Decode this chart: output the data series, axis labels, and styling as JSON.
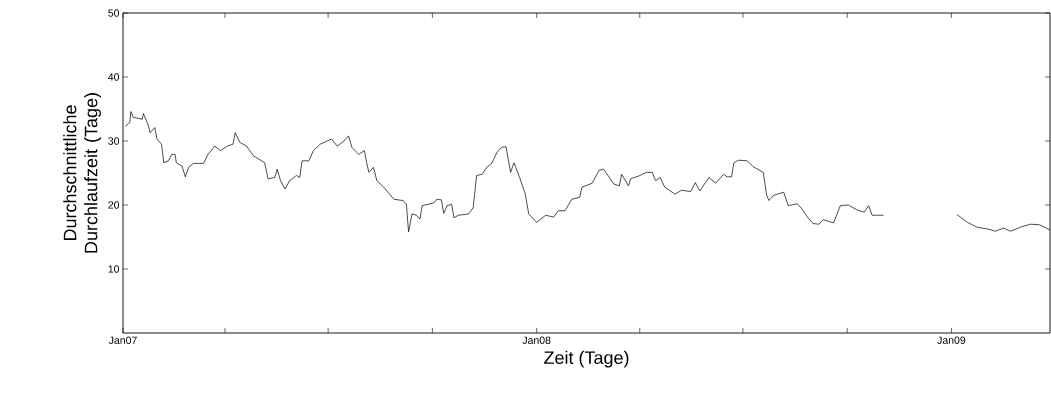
{
  "chart_data": {
    "type": "line",
    "xlabel": "Zeit (Tage)",
    "ylabel": "Durchschnittliche Durchlaufzeit (Tage)",
    "xlim": [
      "2007-01-01",
      "2009-03-29"
    ],
    "ylim": [
      0,
      50
    ],
    "xticks": [
      {
        "value": "2007-01-01",
        "label": "Jan07"
      },
      {
        "value": "2007-04-01",
        "label": null
      },
      {
        "value": "2007-07-01",
        "label": null
      },
      {
        "value": "2007-10-01",
        "label": null
      },
      {
        "value": "2008-01-01",
        "label": "Jan08"
      },
      {
        "value": "2008-04-01",
        "label": null
      },
      {
        "value": "2008-07-01",
        "label": null
      },
      {
        "value": "2008-10-01",
        "label": null
      },
      {
        "value": "2009-01-01",
        "label": "Jan09"
      }
    ],
    "yticks": [
      10,
      20,
      30,
      40,
      50
    ],
    "grid": false,
    "marker": "none",
    "line_style": "solid",
    "series": [
      {
        "color": "#000000",
        "x": [
          "2007-01-03",
          "2007-01-07",
          "2007-01-08",
          "2007-01-10",
          "2007-01-18",
          "2007-01-19",
          "2007-01-23",
          "2007-01-25",
          "2007-01-29",
          "2007-01-31",
          "2007-02-04",
          "2007-02-06",
          "2007-02-10",
          "2007-02-13",
          "2007-02-16",
          "2007-02-17",
          "2007-02-22",
          "2007-02-25",
          "2007-02-28",
          "2007-03-04",
          "2007-03-13",
          "2007-03-17",
          "2007-03-23",
          "2007-03-28",
          "2007-04-03",
          "2007-04-08",
          "2007-04-10",
          "2007-04-14",
          "2007-04-20",
          "2007-04-26",
          "2007-05-06",
          "2007-05-09",
          "2007-05-15",
          "2007-05-17",
          "2007-05-20",
          "2007-05-24",
          "2007-05-28",
          "2007-06-03",
          "2007-06-06",
          "2007-06-08",
          "2007-06-14",
          "2007-06-18",
          "2007-06-24",
          "2007-06-30",
          "2007-07-04",
          "2007-07-09",
          "2007-07-15",
          "2007-07-19",
          "2007-07-22",
          "2007-07-28",
          "2007-08-02",
          "2007-08-04",
          "2007-08-06",
          "2007-08-10",
          "2007-08-13",
          "2007-08-19",
          "2007-08-28",
          "2007-09-05",
          "2007-09-08",
          "2007-09-10",
          "2007-09-13",
          "2007-09-17",
          "2007-09-20",
          "2007-09-22",
          "2007-10-02",
          "2007-10-05",
          "2007-10-09",
          "2007-10-11",
          "2007-10-14",
          "2007-10-18",
          "2007-10-20",
          "2007-10-24",
          "2007-11-02",
          "2007-11-06",
          "2007-11-09",
          "2007-11-14",
          "2007-11-18",
          "2007-11-22",
          "2007-11-27",
          "2007-12-01",
          "2007-12-05",
          "2007-12-09",
          "2007-12-12",
          "2007-12-17",
          "2007-12-22",
          "2007-12-25",
          "2008-01-01",
          "2008-01-09",
          "2008-01-16",
          "2008-01-20",
          "2008-01-26",
          "2008-02-01",
          "2008-02-08",
          "2008-02-10",
          "2008-02-19",
          "2008-02-25",
          "2008-02-29",
          "2008-03-04",
          "2008-03-09",
          "2008-03-14",
          "2008-03-16",
          "2008-03-22",
          "2008-03-24",
          "2008-04-01",
          "2008-04-07",
          "2008-04-12",
          "2008-04-15",
          "2008-04-19",
          "2008-04-23",
          "2008-05-02",
          "2008-05-08",
          "2008-05-16",
          "2008-05-20",
          "2008-05-24",
          "2008-06-01",
          "2008-06-07",
          "2008-06-14",
          "2008-06-17",
          "2008-06-21",
          "2008-06-23",
          "2008-06-27",
          "2008-07-05",
          "2008-07-10",
          "2008-07-19",
          "2008-07-22",
          "2008-07-24",
          "2008-07-28",
          "2008-08-06",
          "2008-08-10",
          "2008-08-18",
          "2008-08-22",
          "2008-08-27",
          "2008-09-01",
          "2008-09-06",
          "2008-09-10",
          "2008-09-19",
          "2008-09-25",
          "2008-10-02",
          "2008-10-10",
          "2008-10-16",
          "2008-10-20",
          "2008-10-23",
          "2008-11-02",
          "2008-12-01",
          "2009-01-06",
          "2009-01-15",
          "2009-01-24",
          "2009-02-01",
          "2009-02-09",
          "2009-02-16",
          "2009-02-22",
          "2009-03-04",
          "2009-03-12",
          "2009-03-20",
          "2009-03-29"
        ],
        "values": [
          32.3,
          32.9,
          34.6,
          33.7,
          33.4,
          34.3,
          32.6,
          31.3,
          32.1,
          30.3,
          29.5,
          26.6,
          26.9,
          27.9,
          27.9,
          26.6,
          26.1,
          24.4,
          25.9,
          26.5,
          26.5,
          27.9,
          29.2,
          28.5,
          29.2,
          29.5,
          31.3,
          29.8,
          29.2,
          27.7,
          26.6,
          24.1,
          24.3,
          25.6,
          23.8,
          22.5,
          23.8,
          24.6,
          24.3,
          26.9,
          26.9,
          28.5,
          29.5,
          30.0,
          30.3,
          29.2,
          30.0,
          30.8,
          29.0,
          27.9,
          28.5,
          26.6,
          25.1,
          25.9,
          23.8,
          22.8,
          20.9,
          20.7,
          20.2,
          15.8,
          18.6,
          18.4,
          17.8,
          19.9,
          20.3,
          20.9,
          20.8,
          18.7,
          19.9,
          20.1,
          18.0,
          18.4,
          18.6,
          19.6,
          24.6,
          24.8,
          25.9,
          26.4,
          28.2,
          29.0,
          29.1,
          25.1,
          26.6,
          24.3,
          21.7,
          18.6,
          17.3,
          18.4,
          18.1,
          19.1,
          19.1,
          20.9,
          21.2,
          22.8,
          23.4,
          25.4,
          25.6,
          24.6,
          23.3,
          23.0,
          24.8,
          23.0,
          24.1,
          24.6,
          25.1,
          25.1,
          23.8,
          24.3,
          22.8,
          21.7,
          22.3,
          22.1,
          23.5,
          22.2,
          24.3,
          23.4,
          24.8,
          24.4,
          24.4,
          26.6,
          27.0,
          26.9,
          26.0,
          25.1,
          21.5,
          20.7,
          21.5,
          22.0,
          19.9,
          20.2,
          19.4,
          18.1,
          17.1,
          17.0,
          17.7,
          17.2,
          19.9,
          20.0,
          19.2,
          18.9,
          19.9,
          18.4,
          18.4,
          null,
          18.5,
          17.3,
          16.5,
          16.3,
          15.9,
          16.4,
          15.9,
          16.6,
          17.0,
          16.9,
          16.1
        ]
      }
    ]
  }
}
